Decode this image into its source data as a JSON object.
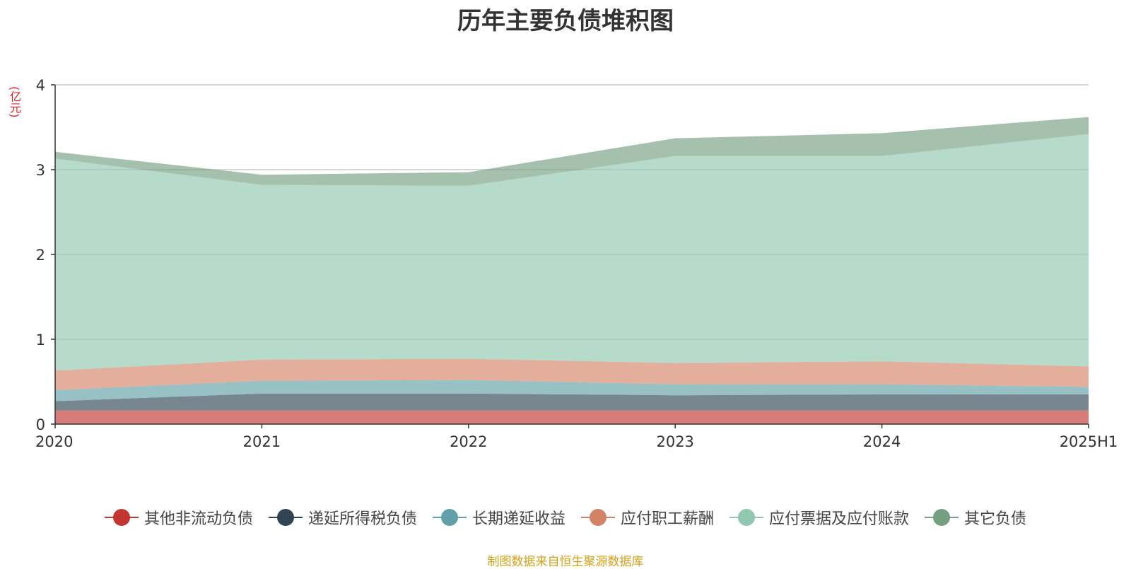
{
  "chart_data": {
    "type": "area",
    "title": "历年主要负债堆积图",
    "ylabel": "(亿元)",
    "xlabel": "",
    "categories": [
      "2020",
      "2021",
      "2022",
      "2023",
      "2024",
      "2025H1"
    ],
    "ylim": [
      0,
      4
    ],
    "yticks": [
      "0",
      "1",
      "2",
      "3",
      "4"
    ],
    "grid": true,
    "legend_position": "bottom",
    "stacked": true,
    "series": [
      {
        "name": "其他非流动负债",
        "color": "#c23531",
        "values": [
          0.16,
          0.16,
          0.16,
          0.16,
          0.16,
          0.16
        ]
      },
      {
        "name": "递延所得税负债",
        "color": "#2f4554",
        "values": [
          0.11,
          0.2,
          0.2,
          0.18,
          0.19,
          0.19
        ]
      },
      {
        "name": "长期递延收益",
        "color": "#61a0a8",
        "values": [
          0.13,
          0.15,
          0.16,
          0.13,
          0.12,
          0.09
        ]
      },
      {
        "name": "应付职工薪酬",
        "color": "#d48265",
        "values": [
          0.23,
          0.25,
          0.25,
          0.25,
          0.27,
          0.24
        ]
      },
      {
        "name": "应付票据及应付账款",
        "color": "#91c7ae",
        "values": [
          2.5,
          2.06,
          2.04,
          2.44,
          2.42,
          2.74
        ]
      },
      {
        "name": "其它负债",
        "color": "#749f83",
        "values": [
          0.08,
          0.12,
          0.16,
          0.21,
          0.27,
          0.2
        ]
      }
    ]
  },
  "source_text": "制图数据来自恒生聚源数据库"
}
